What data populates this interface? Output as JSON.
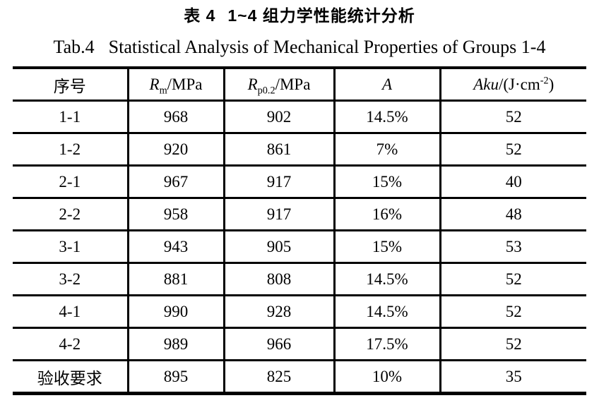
{
  "page": {
    "background_color": "#ffffff",
    "text_color": "#000000"
  },
  "caption": {
    "zh_label": "表 4",
    "zh_title": "1~4 组力学性能统计分析",
    "en_label": "Tab.4",
    "en_title": "Statistical Analysis of Mechanical Properties of Groups 1-4"
  },
  "table": {
    "headers": [
      {
        "text": "序号"
      },
      {
        "italic": "R",
        "sub": "m",
        "rest": "/MPa"
      },
      {
        "italic": "R",
        "sub": "p0.2",
        "rest": "/MPa"
      },
      {
        "italic": "A"
      },
      {
        "italic": "Aku",
        "rest": "/(J·cm",
        "sup": "-2",
        "rest2": ")"
      }
    ],
    "rows": [
      [
        "1-1",
        "968",
        "902",
        "14.5%",
        "52"
      ],
      [
        "1-2",
        "920",
        "861",
        "7%",
        "52"
      ],
      [
        "2-1",
        "967",
        "917",
        "15%",
        "40"
      ],
      [
        "2-2",
        "958",
        "917",
        "16%",
        "48"
      ],
      [
        "3-1",
        "943",
        "905",
        "15%",
        "53"
      ],
      [
        "3-2",
        "881",
        "808",
        "14.5%",
        "52"
      ],
      [
        "4-1",
        "990",
        "928",
        "14.5%",
        "52"
      ],
      [
        "4-2",
        "989",
        "966",
        "17.5%",
        "52"
      ],
      [
        "验收要求",
        "895",
        "825",
        "10%",
        "35"
      ]
    ]
  }
}
